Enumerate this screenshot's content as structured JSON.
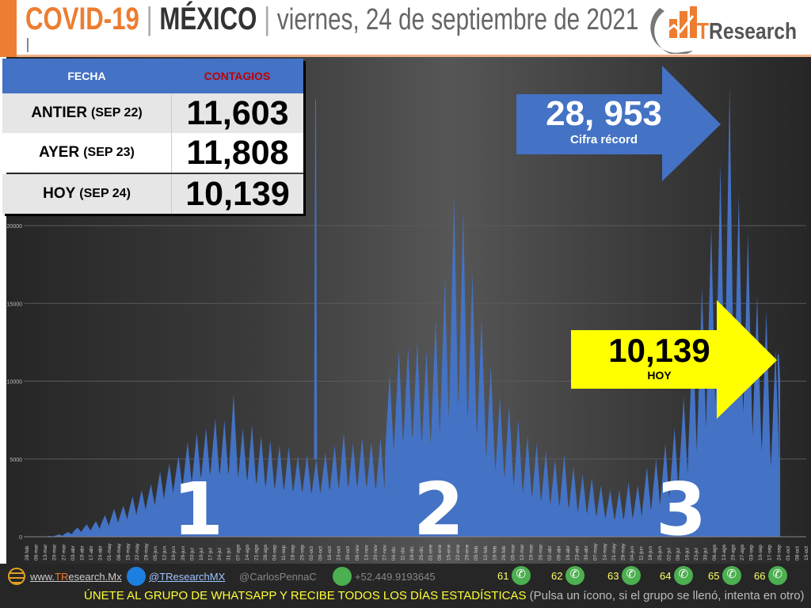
{
  "header": {
    "title_covid": "COVID-19",
    "separator": "|",
    "title_country": "MÉXICO",
    "date": "viernes, 24 de septiembre de 2021",
    "logo_text_t": "T",
    "logo_text_rest": "Research"
  },
  "table": {
    "col_date": "FECHA",
    "col_cases": "CONTAGIOS",
    "col_cases_color": "#c00000",
    "rows": [
      {
        "label": "ANTIER",
        "date": "(SEP 22)",
        "value": "11,603"
      },
      {
        "label": "AYER",
        "date": "(SEP 23)",
        "value": "11,808"
      },
      {
        "label": "HOY",
        "date": "(SEP 24)",
        "value": "10,139"
      }
    ]
  },
  "record_arrow": {
    "value": "28, 953",
    "caption": "Cifra récord",
    "color": "#4472c4"
  },
  "today_arrow": {
    "value": "10,139",
    "caption": "HOY",
    "color": "#ffff00"
  },
  "waves": [
    "1",
    "2",
    "3"
  ],
  "footer": {
    "website_pre": "www.",
    "website_t": "TR",
    "website_rest": "esearch.Mx",
    "twitter": "@TResearchMX",
    "handle": "@CarlosPennaC",
    "phone": "+52.449.9193645",
    "whatsapp_groups": [
      "61",
      "62",
      "63",
      "64",
      "65",
      "66"
    ],
    "cta": "ÚNETE AL GRUPO DE WHATSAPP Y RECIBE TODOS LOS DÍAS ESTADÍSTICAS",
    "cta_note": "(Pulsa un ícono, si el grupo se llenó, intenta en otro)"
  },
  "chart_data": {
    "type": "area",
    "title": "",
    "xlabel": "",
    "ylabel": "",
    "color": "#4472c4",
    "ylim": [
      0,
      30000
    ],
    "grid": true,
    "y_ticks": [
      "0",
      "5000",
      "10000",
      "15000",
      "20000"
    ],
    "x_tick_labels": [
      "28-feb",
      "06-mar",
      "13-mar",
      "20-mar",
      "27-mar",
      "03-abr",
      "10-abr",
      "17-abr",
      "24-abr",
      "01-may",
      "08-may",
      "15-may",
      "22-may",
      "29-may",
      "05-jun",
      "12-jun",
      "19-jun",
      "26-jun",
      "03-jul",
      "10-jul",
      "17-jul",
      "24-jul",
      "31-jul",
      "07-ago",
      "14-ago",
      "21-ago",
      "28-ago",
      "04-sep",
      "11-sep",
      "18-sep",
      "25-sep",
      "02-oct",
      "09-oct",
      "16-oct",
      "23-oct",
      "30-oct",
      "06-nov",
      "13-nov",
      "20-nov",
      "27-nov",
      "04-dic",
      "11-dic",
      "18-dic",
      "25-dic",
      "01-ene",
      "08-ene",
      "15-ene",
      "22-ene",
      "29-ene",
      "05-feb",
      "12-feb",
      "19-feb",
      "26-feb",
      "05-mar",
      "12-mar",
      "19-mar",
      "26-mar",
      "02-abr",
      "09-abr",
      "16-abr",
      "23-abr",
      "30-abr",
      "07-may",
      "14-may",
      "21-may",
      "28-may",
      "04-jun",
      "11-jun",
      "18-jun",
      "25-jun",
      "02-jul",
      "09-jul",
      "16-jul",
      "23-jul",
      "30-jul",
      "06-ago",
      "13-ago",
      "20-ago",
      "27-ago",
      "03-sep",
      "10-sep",
      "17-sep",
      "24-sep",
      "01-oct",
      "08-oct",
      "15-oct"
    ],
    "weekly_high": [
      0,
      10,
      50,
      150,
      300,
      600,
      800,
      1000,
      1400,
      1800,
      2000,
      2600,
      3000,
      3400,
      4200,
      4700,
      5200,
      6100,
      6700,
      7000,
      7600,
      7500,
      9200,
      7000,
      7200,
      6500,
      6200,
      5900,
      5800,
      5200,
      5300,
      5000,
      5400,
      5900,
      6700,
      6000,
      6400,
      6100,
      6400,
      10500,
      12000,
      12200,
      12500,
      12000,
      14000,
      16500,
      22000,
      21000,
      17000,
      14000,
      11000,
      9000,
      8500,
      7500,
      6500,
      6000,
      5500,
      5000,
      5300,
      4500,
      4000,
      3800,
      3300,
      3000,
      3000,
      3500,
      3300,
      4500,
      5000,
      6000,
      7000,
      9000,
      13000,
      16000,
      20000,
      24000,
      28953,
      22000,
      19500,
      15500,
      14500,
      12000
    ],
    "weekly_low": [
      0,
      5,
      20,
      60,
      150,
      300,
      400,
      500,
      700,
      900,
      1100,
      1400,
      1700,
      2000,
      2400,
      2800,
      3200,
      3500,
      3800,
      4000,
      4200,
      4000,
      4300,
      3800,
      3600,
      3400,
      3200,
      3100,
      3000,
      2900,
      2900,
      2800,
      3000,
      3100,
      3300,
      3200,
      3300,
      3200,
      3000,
      5500,
      6200,
      6400,
      6500,
      6000,
      6500,
      7500,
      9000,
      8500,
      7500,
      6500,
      5000,
      4200,
      3800,
      3200,
      2800,
      2500,
      2300,
      2100,
      2000,
      1800,
      1600,
      1500,
      1300,
      1200,
      1100,
      1200,
      1300,
      1700,
      2000,
      2500,
      3000,
      4000,
      5500,
      7000,
      8500,
      9500,
      10500,
      9000,
      8000,
      6500,
      5500,
      4500
    ],
    "last_days": [
      {
        "date": "22-sep",
        "value": 11603
      },
      {
        "date": "23-sep",
        "value": 11808
      },
      {
        "date": "24-sep",
        "value": 10139
      }
    ],
    "outlier": {
      "date": "05-oct",
      "value": 28115
    }
  }
}
